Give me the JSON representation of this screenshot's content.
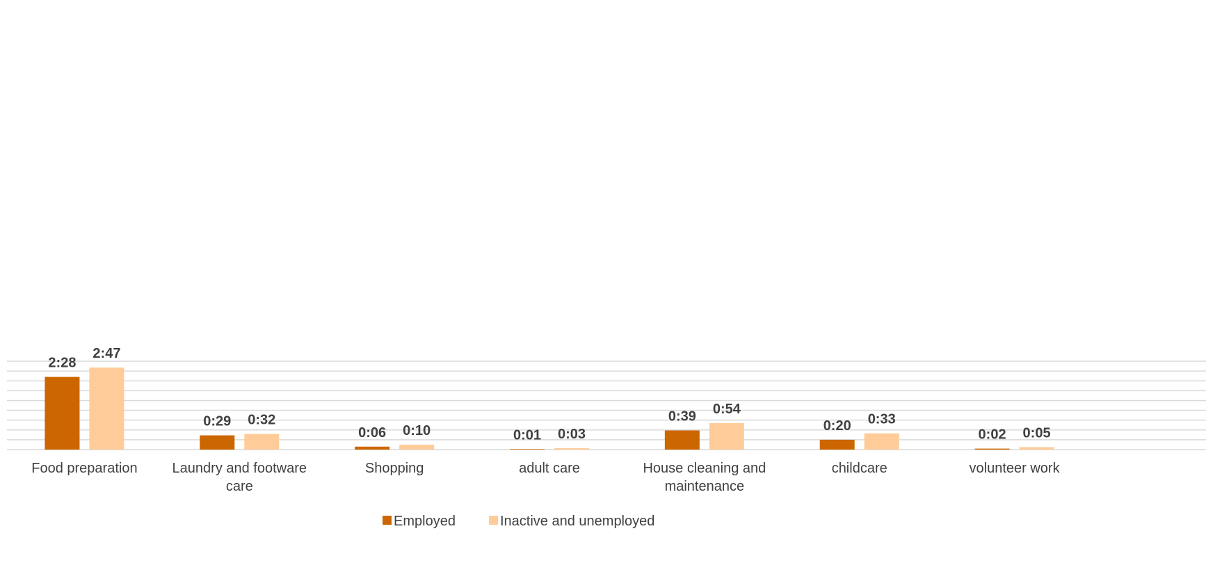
{
  "chart_data": {
    "type": "bar",
    "title": "",
    "xlabel": "",
    "ylabel": "",
    "ylim_minutes": [
      0,
      180
    ],
    "grid": true,
    "legend_position": "bottom",
    "categories": [
      [
        "Food preparation"
      ],
      [
        "Laundry and footware",
        "care"
      ],
      [
        "Shopping"
      ],
      [
        "adult care"
      ],
      [
        "House cleaning and",
        "maintenance"
      ],
      [
        "childcare"
      ],
      [
        "volunteer work"
      ]
    ],
    "series": [
      {
        "name": "Employed",
        "color": "#cc6600",
        "values_minutes": [
          148,
          29,
          6,
          1,
          39,
          20,
          2
        ],
        "labels": [
          "2:28",
          "0:29",
          "0:06",
          "0:01",
          "0:39",
          "0:20",
          "0:02"
        ]
      },
      {
        "name": "Inactive and unemployed",
        "color": "#ffcc99",
        "values_minutes": [
          167,
          32,
          10,
          3,
          54,
          33,
          5
        ],
        "labels": [
          "2:47",
          "0:32",
          "0:10",
          "0:03",
          "0:54",
          "0:33",
          "0:05"
        ]
      }
    ]
  }
}
